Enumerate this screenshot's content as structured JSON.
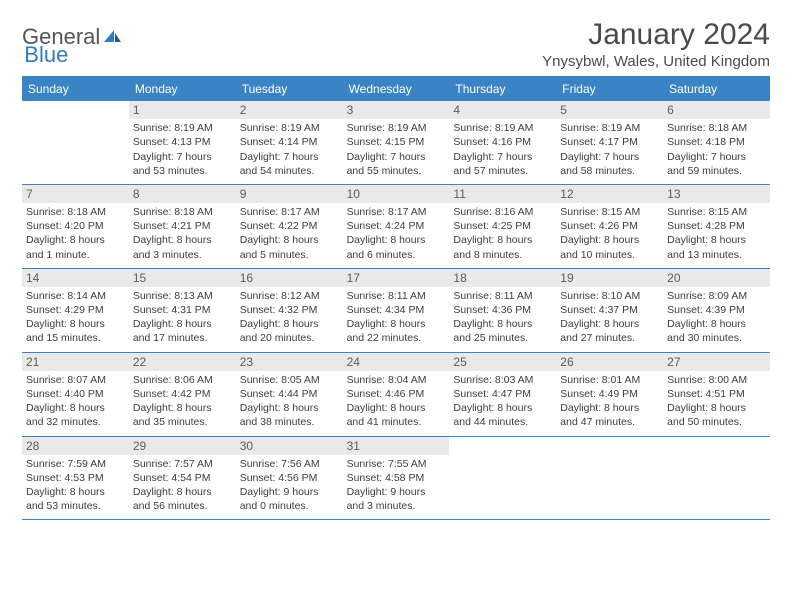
{
  "logo": {
    "word1": "General",
    "word2": "Blue",
    "color1": "#555555",
    "color2": "#2f7cc4"
  },
  "title": "January 2024",
  "location": "Ynysybwl, Wales, United Kingdom",
  "weekdays": [
    "Sunday",
    "Monday",
    "Tuesday",
    "Wednesday",
    "Thursday",
    "Friday",
    "Saturday"
  ],
  "header_bg": "#3a84c6",
  "divider_color": "#3a84c6",
  "daynum_bg": "#e9e9e9",
  "weeks": [
    [
      {
        "n": "",
        "sr": "",
        "ss": "",
        "dl": ""
      },
      {
        "n": "1",
        "sr": "Sunrise: 8:19 AM",
        "ss": "Sunset: 4:13 PM",
        "dl": "Daylight: 7 hours and 53 minutes."
      },
      {
        "n": "2",
        "sr": "Sunrise: 8:19 AM",
        "ss": "Sunset: 4:14 PM",
        "dl": "Daylight: 7 hours and 54 minutes."
      },
      {
        "n": "3",
        "sr": "Sunrise: 8:19 AM",
        "ss": "Sunset: 4:15 PM",
        "dl": "Daylight: 7 hours and 55 minutes."
      },
      {
        "n": "4",
        "sr": "Sunrise: 8:19 AM",
        "ss": "Sunset: 4:16 PM",
        "dl": "Daylight: 7 hours and 57 minutes."
      },
      {
        "n": "5",
        "sr": "Sunrise: 8:19 AM",
        "ss": "Sunset: 4:17 PM",
        "dl": "Daylight: 7 hours and 58 minutes."
      },
      {
        "n": "6",
        "sr": "Sunrise: 8:18 AM",
        "ss": "Sunset: 4:18 PM",
        "dl": "Daylight: 7 hours and 59 minutes."
      }
    ],
    [
      {
        "n": "7",
        "sr": "Sunrise: 8:18 AM",
        "ss": "Sunset: 4:20 PM",
        "dl": "Daylight: 8 hours and 1 minute."
      },
      {
        "n": "8",
        "sr": "Sunrise: 8:18 AM",
        "ss": "Sunset: 4:21 PM",
        "dl": "Daylight: 8 hours and 3 minutes."
      },
      {
        "n": "9",
        "sr": "Sunrise: 8:17 AM",
        "ss": "Sunset: 4:22 PM",
        "dl": "Daylight: 8 hours and 5 minutes."
      },
      {
        "n": "10",
        "sr": "Sunrise: 8:17 AM",
        "ss": "Sunset: 4:24 PM",
        "dl": "Daylight: 8 hours and 6 minutes."
      },
      {
        "n": "11",
        "sr": "Sunrise: 8:16 AM",
        "ss": "Sunset: 4:25 PM",
        "dl": "Daylight: 8 hours and 8 minutes."
      },
      {
        "n": "12",
        "sr": "Sunrise: 8:15 AM",
        "ss": "Sunset: 4:26 PM",
        "dl": "Daylight: 8 hours and 10 minutes."
      },
      {
        "n": "13",
        "sr": "Sunrise: 8:15 AM",
        "ss": "Sunset: 4:28 PM",
        "dl": "Daylight: 8 hours and 13 minutes."
      }
    ],
    [
      {
        "n": "14",
        "sr": "Sunrise: 8:14 AM",
        "ss": "Sunset: 4:29 PM",
        "dl": "Daylight: 8 hours and 15 minutes."
      },
      {
        "n": "15",
        "sr": "Sunrise: 8:13 AM",
        "ss": "Sunset: 4:31 PM",
        "dl": "Daylight: 8 hours and 17 minutes."
      },
      {
        "n": "16",
        "sr": "Sunrise: 8:12 AM",
        "ss": "Sunset: 4:32 PM",
        "dl": "Daylight: 8 hours and 20 minutes."
      },
      {
        "n": "17",
        "sr": "Sunrise: 8:11 AM",
        "ss": "Sunset: 4:34 PM",
        "dl": "Daylight: 8 hours and 22 minutes."
      },
      {
        "n": "18",
        "sr": "Sunrise: 8:11 AM",
        "ss": "Sunset: 4:36 PM",
        "dl": "Daylight: 8 hours and 25 minutes."
      },
      {
        "n": "19",
        "sr": "Sunrise: 8:10 AM",
        "ss": "Sunset: 4:37 PM",
        "dl": "Daylight: 8 hours and 27 minutes."
      },
      {
        "n": "20",
        "sr": "Sunrise: 8:09 AM",
        "ss": "Sunset: 4:39 PM",
        "dl": "Daylight: 8 hours and 30 minutes."
      }
    ],
    [
      {
        "n": "21",
        "sr": "Sunrise: 8:07 AM",
        "ss": "Sunset: 4:40 PM",
        "dl": "Daylight: 8 hours and 32 minutes."
      },
      {
        "n": "22",
        "sr": "Sunrise: 8:06 AM",
        "ss": "Sunset: 4:42 PM",
        "dl": "Daylight: 8 hours and 35 minutes."
      },
      {
        "n": "23",
        "sr": "Sunrise: 8:05 AM",
        "ss": "Sunset: 4:44 PM",
        "dl": "Daylight: 8 hours and 38 minutes."
      },
      {
        "n": "24",
        "sr": "Sunrise: 8:04 AM",
        "ss": "Sunset: 4:46 PM",
        "dl": "Daylight: 8 hours and 41 minutes."
      },
      {
        "n": "25",
        "sr": "Sunrise: 8:03 AM",
        "ss": "Sunset: 4:47 PM",
        "dl": "Daylight: 8 hours and 44 minutes."
      },
      {
        "n": "26",
        "sr": "Sunrise: 8:01 AM",
        "ss": "Sunset: 4:49 PM",
        "dl": "Daylight: 8 hours and 47 minutes."
      },
      {
        "n": "27",
        "sr": "Sunrise: 8:00 AM",
        "ss": "Sunset: 4:51 PM",
        "dl": "Daylight: 8 hours and 50 minutes."
      }
    ],
    [
      {
        "n": "28",
        "sr": "Sunrise: 7:59 AM",
        "ss": "Sunset: 4:53 PM",
        "dl": "Daylight: 8 hours and 53 minutes."
      },
      {
        "n": "29",
        "sr": "Sunrise: 7:57 AM",
        "ss": "Sunset: 4:54 PM",
        "dl": "Daylight: 8 hours and 56 minutes."
      },
      {
        "n": "30",
        "sr": "Sunrise: 7:56 AM",
        "ss": "Sunset: 4:56 PM",
        "dl": "Daylight: 9 hours and 0 minutes."
      },
      {
        "n": "31",
        "sr": "Sunrise: 7:55 AM",
        "ss": "Sunset: 4:58 PM",
        "dl": "Daylight: 9 hours and 3 minutes."
      },
      {
        "n": "",
        "sr": "",
        "ss": "",
        "dl": ""
      },
      {
        "n": "",
        "sr": "",
        "ss": "",
        "dl": ""
      },
      {
        "n": "",
        "sr": "",
        "ss": "",
        "dl": ""
      }
    ]
  ]
}
